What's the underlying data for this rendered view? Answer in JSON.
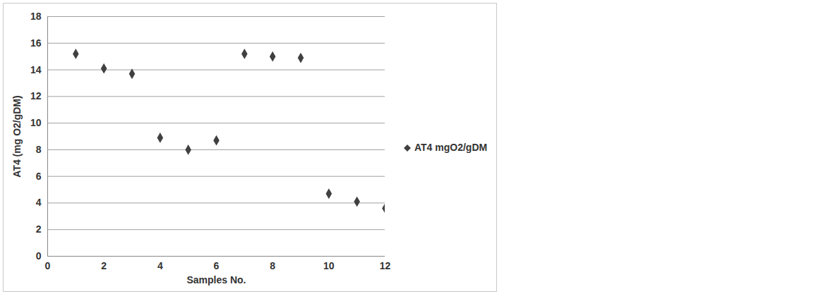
{
  "chart_data": {
    "type": "scatter",
    "x_label": "Samples No.",
    "y_label": "AT4 (mg O2/gDM)",
    "x": [
      1,
      2,
      3,
      4,
      5,
      6,
      7,
      8,
      9,
      10,
      11,
      12
    ],
    "series": [
      {
        "name": "AT4 mgO2/gDM",
        "color": "#404040",
        "marker": "diamond",
        "values": [
          15.2,
          14.1,
          13.7,
          8.9,
          8.0,
          8.7,
          15.2,
          15.0,
          14.9,
          4.7,
          4.1,
          3.6
        ]
      }
    ],
    "xlim": [
      0,
      12
    ],
    "xticks": [
      0,
      2,
      4,
      6,
      8,
      10,
      12
    ],
    "ylim": [
      0,
      18
    ],
    "yticks": [
      0,
      2,
      4,
      6,
      8,
      10,
      12,
      14,
      16,
      18
    ],
    "grid": "y",
    "legend": "right"
  }
}
